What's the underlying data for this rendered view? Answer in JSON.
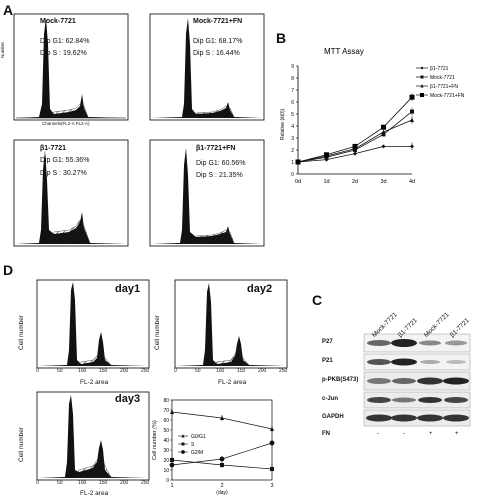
{
  "panels": {
    "a": "A",
    "b": "B",
    "c": "C",
    "d": "D"
  },
  "panel_a": {
    "histograms": [
      {
        "title": "Mock-7721",
        "g1": "Dip G1: 62.84%",
        "s": "Dip S :  19.62%"
      },
      {
        "title": "Mock-7721+FN",
        "g1": "Dip G1: 68.17%",
        "s": "Dip S :  16.44%"
      },
      {
        "title": "β1-7721",
        "g1": "Dip G1: 55.36%",
        "s": "Dip S :  30.27%"
      },
      {
        "title": "β1-7721+FN",
        "g1": "Dip G1: 60.56%",
        "s": "Dip S :  21.35%"
      }
    ],
    "ylabel": "Number",
    "xlabel": "Channels(FL2-A FL2-A)"
  },
  "panel_d": {
    "days": [
      "day1",
      "day2",
      "day3"
    ],
    "ylabel": "Cell number",
    "xlabel": "FL-2 area",
    "x_ticks": [
      "0",
      "50",
      "100",
      "150",
      "200",
      "250"
    ]
  },
  "panel_c": {
    "lanes": [
      "Mock-7721",
      "β1-7721",
      "Mock-7721",
      "β1-7721"
    ],
    "rows": [
      "P27",
      "P21",
      "p-PKB(S473)",
      "c-Jun",
      "GAPDH"
    ],
    "fn_label": "FN",
    "fn_values": [
      "-",
      "-",
      "+",
      "+"
    ]
  },
  "chart_data": [
    {
      "type": "line",
      "title": "MTT Assay",
      "xlabel": "",
      "ylabel": "Relative (Ⅱ(0))",
      "categories": [
        "0d",
        "1d",
        "2d",
        "3d",
        "4d"
      ],
      "ylim": [
        0,
        9
      ],
      "y_ticks": [
        "0",
        "1",
        "2",
        "3",
        "4",
        "5",
        "6",
        "7",
        "8",
        "9"
      ],
      "series": [
        {
          "name": "β1-7721",
          "marker": "diamond",
          "values": [
            1.0,
            1.2,
            1.7,
            2.3,
            2.3
          ]
        },
        {
          "name": "Mock-7721",
          "marker": "square",
          "values": [
            1.0,
            1.4,
            2.0,
            3.3,
            5.2
          ]
        },
        {
          "name": "β1-7721+FN",
          "marker": "triangle",
          "values": [
            1.0,
            1.5,
            2.1,
            3.5,
            4.5
          ]
        },
        {
          "name": "Mock-7721+FN",
          "marker": "square-filled",
          "values": [
            1.0,
            1.6,
            2.3,
            3.9,
            6.4
          ]
        }
      ],
      "legend": "right"
    },
    {
      "type": "line",
      "title": "",
      "xlabel": "(day)",
      "ylabel": "Cell number (%)",
      "x": [
        1,
        2,
        3
      ],
      "x_ticks": [
        "1",
        "2",
        "3"
      ],
      "ylim": [
        0,
        80
      ],
      "y_ticks": [
        "0",
        "10",
        "20",
        "30",
        "40",
        "50",
        "60",
        "70",
        "80"
      ],
      "series": [
        {
          "name": "G0/G1",
          "marker": "triangle",
          "values": [
            68,
            62,
            51
          ]
        },
        {
          "name": "S",
          "marker": "square",
          "values": [
            20,
            15,
            11
          ]
        },
        {
          "name": "G2/M",
          "marker": "circle",
          "values": [
            15,
            21,
            37
          ]
        }
      ],
      "legend": "inside-left"
    }
  ]
}
